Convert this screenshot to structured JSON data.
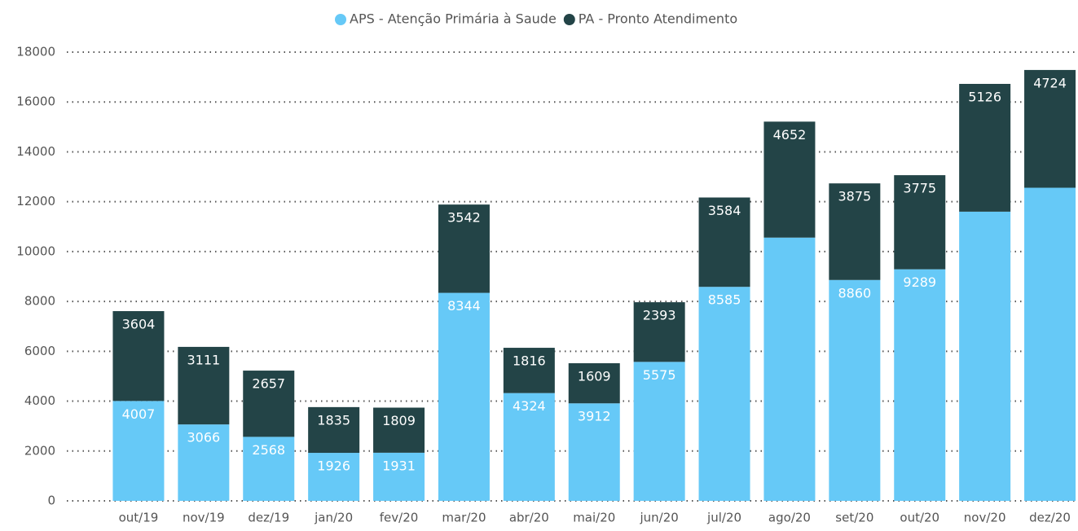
{
  "chart_data": {
    "type": "stacked-bar",
    "categories": [
      "out/19",
      "nov/19",
      "dez/19",
      "jan/20",
      "fev/20",
      "mar/20",
      "abr/20",
      "mai/20",
      "jun/20",
      "jul/20",
      "ago/20",
      "set/20",
      "out/20",
      "nov/20",
      "dez/20"
    ],
    "series": [
      {
        "name": "APS - Atenção Primária à Saude",
        "color": "#66c9f7",
        "values": [
          4007,
          3066,
          2568,
          1926,
          1931,
          8344,
          4324,
          3912,
          5575,
          8585,
          10560,
          8860,
          9289,
          11600,
          12560
        ],
        "value_labels": [
          "4007",
          "3066",
          "2568",
          "1926",
          "1931",
          "8344",
          "4324",
          "3912",
          "5575",
          "8585",
          null,
          "8860",
          "9289",
          null,
          null
        ]
      },
      {
        "name": "PA - Pronto Atendimento",
        "color": "#234447",
        "values": [
          3604,
          3111,
          2657,
          1835,
          1809,
          3542,
          1816,
          1609,
          2393,
          3584,
          4652,
          3875,
          3775,
          5126,
          4724
        ]
      }
    ],
    "ylim": [
      0,
      18000
    ],
    "yticks": [
      0,
      2000,
      4000,
      6000,
      8000,
      10000,
      12000,
      14000,
      16000,
      18000
    ],
    "grid": true,
    "legend": "top"
  }
}
